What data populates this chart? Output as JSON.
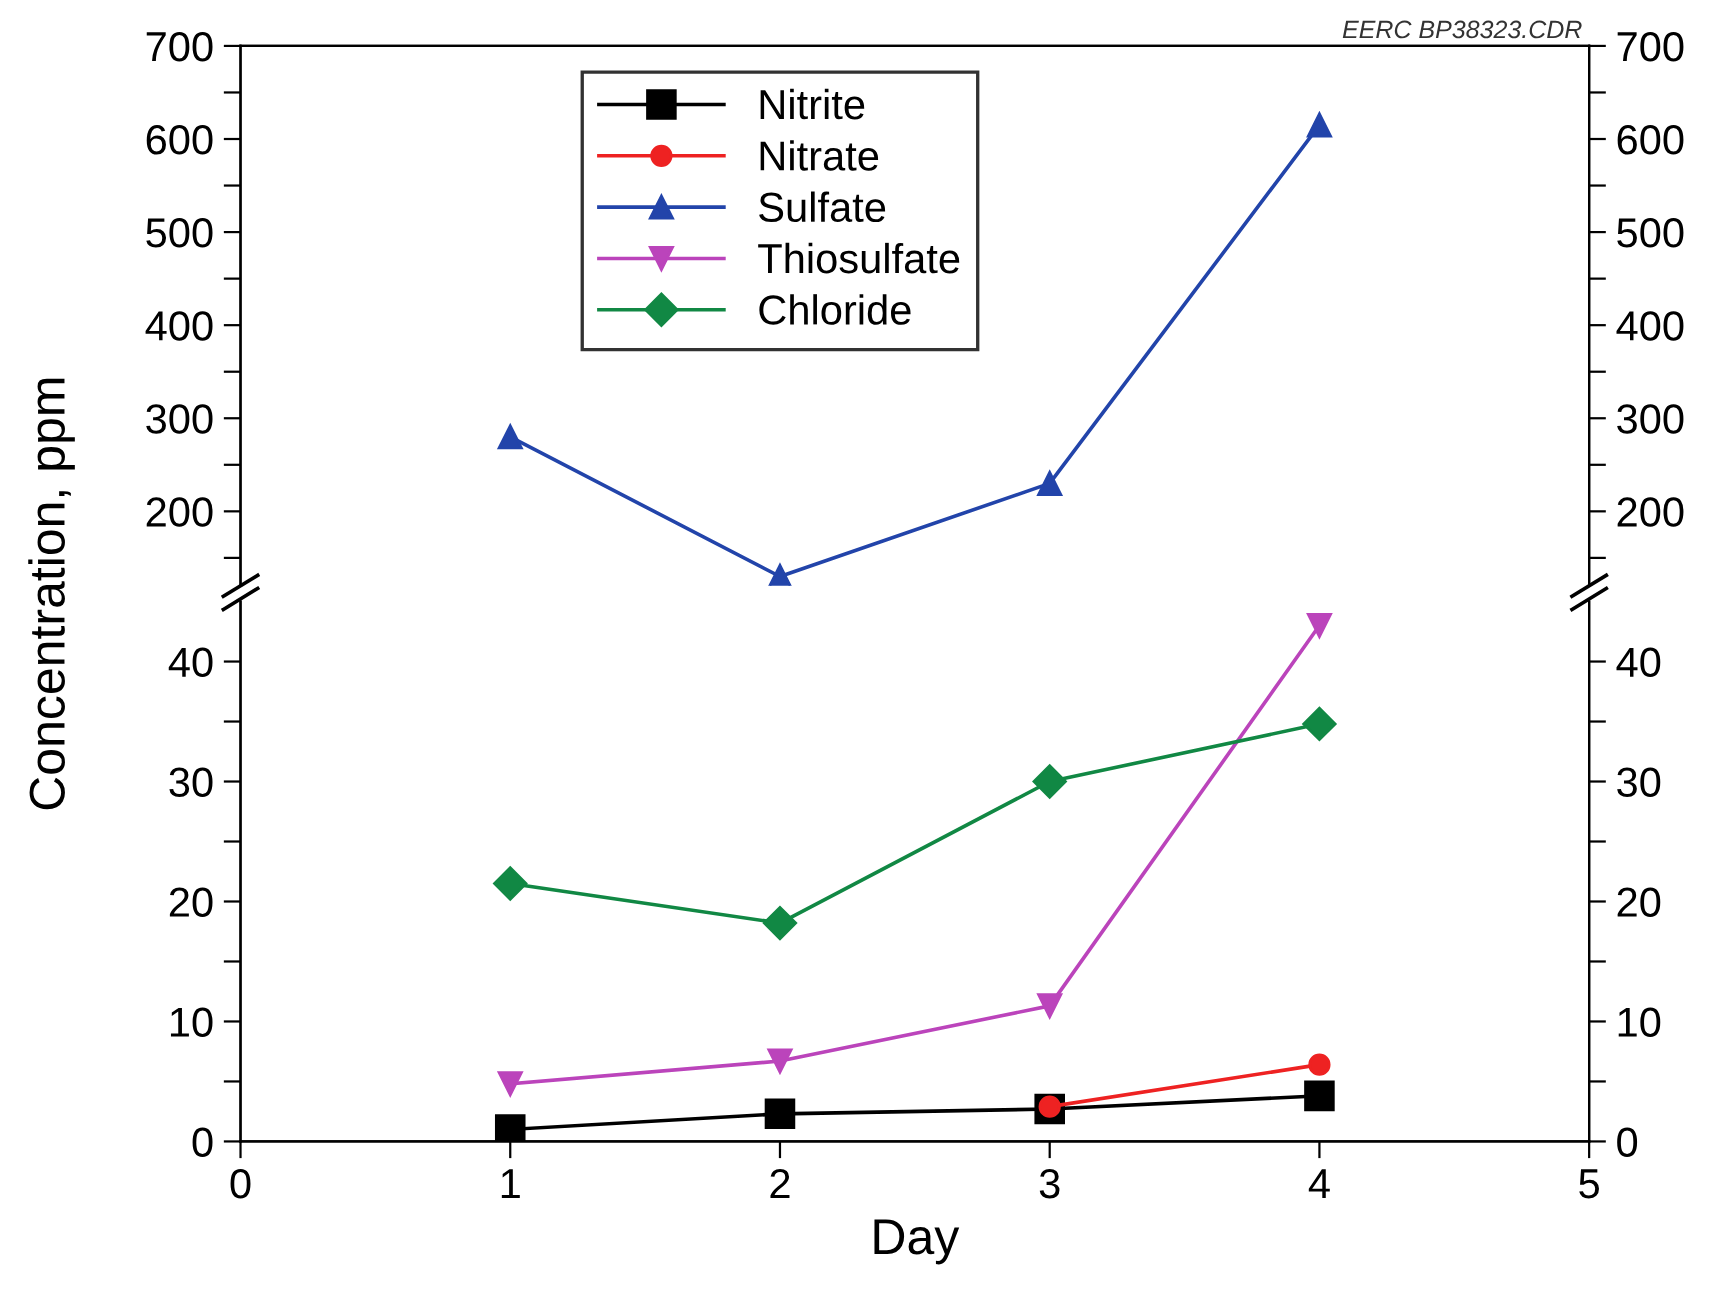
{
  "chart_data": [
    {
      "type": "line",
      "ylabel": "Concentration, ppm",
      "x": [
        1,
        2,
        3,
        4
      ],
      "xlim": [
        0,
        5
      ],
      "ylim": [
        120,
        700
      ],
      "yticks": [
        {
          "value": 150,
          "label": null
        },
        200,
        {
          "value": 250,
          "label": null
        },
        300,
        {
          "value": 350,
          "label": null
        },
        400,
        {
          "value": 450,
          "label": null
        },
        500,
        {
          "value": 550,
          "label": null
        },
        600,
        {
          "value": 650,
          "label": null
        },
        700
      ],
      "y2lim": [
        120,
        700
      ],
      "y2ticks": [
        {
          "value": 150,
          "label": null
        },
        200,
        {
          "value": 250,
          "label": null
        },
        300,
        {
          "value": 350,
          "label": null
        },
        400,
        {
          "value": 450,
          "label": null
        },
        500,
        {
          "value": 550,
          "label": null
        },
        600,
        {
          "value": 650,
          "label": null
        },
        700
      ],
      "tick_labels": "y",
      "legend": "top",
      "grid": false,
      "annotations": [
        "EERC BP38323.CDR"
      ],
      "series": [
        {
          "name": "Nitrite",
          "color": "#000000",
          "marker": "square",
          "values": [
            null,
            null,
            null,
            null
          ]
        },
        {
          "name": "Nitrate",
          "color": "#ee2222",
          "marker": "circle",
          "values": [
            null,
            null,
            null,
            null
          ]
        },
        {
          "name": "Sulfate",
          "color": "#2244aa",
          "marker": "triangle",
          "values": [
            280,
            130,
            230,
            615
          ]
        },
        {
          "name": "Thiosulfate",
          "color": "#bb44bb",
          "marker": "triangle_down",
          "values": [
            null,
            null,
            null,
            null
          ]
        },
        {
          "name": "Chloride",
          "color": "#118844",
          "marker": "diamond",
          "values": [
            null,
            null,
            null,
            null
          ]
        }
      ]
    },
    {
      "type": "line",
      "xlabel": "Day",
      "x": [
        1,
        2,
        3,
        4
      ],
      "xlim": [
        0,
        5
      ],
      "xticks": [
        0,
        1,
        2,
        3,
        4,
        5
      ],
      "ylim": [
        0,
        45
      ],
      "yticks": [
        0,
        {
          "value": 5,
          "label": null
        },
        10,
        {
          "value": 15,
          "label": null
        },
        20,
        {
          "value": 25,
          "label": null
        },
        30,
        {
          "value": 35,
          "label": null
        },
        40
      ],
      "y2lim": [
        0,
        45
      ],
      "y2ticks": [
        0,
        {
          "value": 5,
          "label": null
        },
        10,
        {
          "value": 15,
          "label": null
        },
        20,
        {
          "value": 25,
          "label": null
        },
        30,
        {
          "value": 35,
          "label": null
        },
        40
      ],
      "grid": false,
      "series": [
        {
          "color": "#000000",
          "marker": "square",
          "values": [
            1.0,
            2.3,
            2.7,
            3.8
          ]
        },
        {
          "color": "#ee2222",
          "marker": "circle",
          "values": [
            null,
            null,
            2.9,
            6.4
          ]
        },
        {
          "color": "#2244aa",
          "marker": "triangle",
          "values": [
            null,
            null,
            null,
            null
          ]
        },
        {
          "color": "#bb44bb",
          "marker": "triangle_down",
          "values": [
            4.8,
            6.7,
            11.3,
            43
          ]
        },
        {
          "color": "#118844",
          "marker": "diamond",
          "values": [
            21.5,
            18.2,
            30,
            34.8
          ]
        }
      ]
    }
  ]
}
